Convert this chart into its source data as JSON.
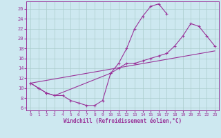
{
  "xlabel": "Windchill (Refroidissement éolien,°C)",
  "bg_color": "#cde8f0",
  "line_color": "#993399",
  "grid_color": "#aacccc",
  "xlim": [
    -0.5,
    23.5
  ],
  "ylim": [
    5.5,
    27.5
  ],
  "yticks": [
    6,
    8,
    10,
    12,
    14,
    16,
    18,
    20,
    22,
    24,
    26
  ],
  "xticks": [
    0,
    1,
    2,
    3,
    4,
    5,
    6,
    7,
    8,
    9,
    10,
    11,
    12,
    13,
    14,
    15,
    16,
    17,
    18,
    19,
    20,
    21,
    22,
    23
  ],
  "curve1_x": [
    0,
    1,
    2,
    3,
    4,
    5,
    6,
    7,
    8,
    9,
    10,
    11,
    12,
    13,
    14,
    15,
    16,
    17
  ],
  "curve1_y": [
    11,
    10,
    9,
    8.5,
    8.5,
    7.5,
    7,
    6.5,
    6.5,
    7.5,
    13,
    15,
    18,
    22,
    24.5,
    26.5,
    27,
    25
  ],
  "curve2_x": [
    0,
    1,
    2,
    3,
    10,
    11,
    12,
    13,
    14,
    15,
    16,
    17,
    18,
    19,
    20,
    21,
    22,
    23
  ],
  "curve2_y": [
    11,
    10,
    9,
    8.5,
    13,
    14,
    15,
    15,
    15.5,
    16,
    16.5,
    17,
    18.5,
    20.5,
    23,
    22.5,
    20.5,
    18.5
  ],
  "curve3_x": [
    0,
    23
  ],
  "curve3_y": [
    11,
    17.5
  ]
}
